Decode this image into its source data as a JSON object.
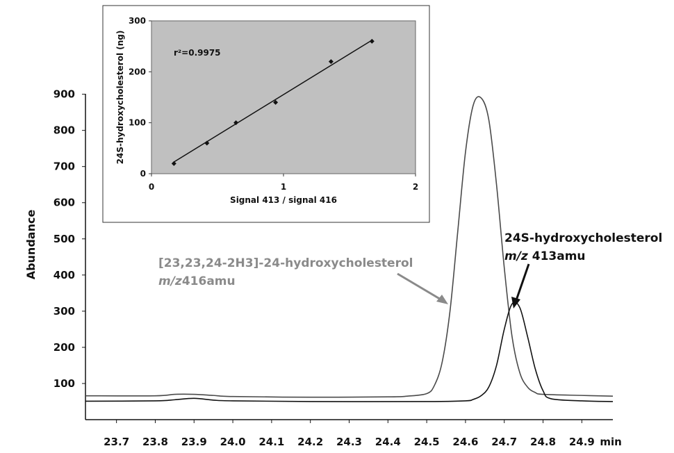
{
  "chart_data": [
    {
      "type": "line",
      "title": "",
      "xlabel": "",
      "ylabel": "Abundance",
      "x_unit": "min",
      "xlim": [
        23.62,
        24.98
      ],
      "ylim": [
        0,
        930
      ],
      "x_ticks": [
        "23.7",
        "23.8",
        "23.9",
        "24.0",
        "24.1",
        "24.2",
        "24.3",
        "24.4",
        "24.5",
        "24.6",
        "24.7",
        "24.8",
        "24.9"
      ],
      "y_ticks": [
        100,
        200,
        300,
        400,
        500,
        600,
        700,
        800,
        900
      ],
      "series": [
        {
          "name": "[23,23,24-2H3]-24-hydroxycholesterol m/z416amu",
          "color": "#4a4a4a",
          "x": [
            23.62,
            23.8,
            23.85,
            23.9,
            23.95,
            24.0,
            24.2,
            24.4,
            24.45,
            24.5,
            24.52,
            24.54,
            24.56,
            24.58,
            24.6,
            24.62,
            24.64,
            24.66,
            24.68,
            24.7,
            24.72,
            24.74,
            24.76,
            24.78,
            24.8,
            24.9,
            24.98
          ],
          "y": [
            66,
            66,
            70,
            70,
            67,
            64,
            62,
            63,
            65,
            72,
            95,
            160,
            300,
            520,
            740,
            870,
            890,
            830,
            650,
            420,
            230,
            130,
            90,
            75,
            70,
            67,
            65
          ]
        },
        {
          "name": "24S-hydroxycholesterol m/z 413amu",
          "color": "#111111",
          "x": [
            23.62,
            23.8,
            23.85,
            23.9,
            23.95,
            24.0,
            24.2,
            24.5,
            24.6,
            24.62,
            24.64,
            24.66,
            24.68,
            24.7,
            24.72,
            24.74,
            24.76,
            24.78,
            24.8,
            24.82,
            24.9,
            24.98
          ],
          "y": [
            51,
            52,
            55,
            59,
            54,
            52,
            50,
            50,
            52,
            56,
            66,
            90,
            150,
            250,
            320,
            310,
            230,
            140,
            80,
            58,
            52,
            50
          ]
        }
      ],
      "annotations": [
        {
          "text": "[23,23,24-2H3]-24-hydroxycholesterol",
          "line2_italic": "m/z",
          "line2_rest": "416amu"
        },
        {
          "text": "24S-hydroxycholesterol",
          "line2_italic": "m/z",
          "line2_rest": " 413amu"
        }
      ]
    },
    {
      "type": "scatter",
      "title": "",
      "xlabel": "Signal 413 / signal 416",
      "ylabel": "24S-hydroxycholesterol (ng)",
      "xlim": [
        0,
        2
      ],
      "ylim": [
        0,
        300
      ],
      "x_ticks": [
        0,
        1,
        2
      ],
      "y_ticks": [
        0,
        100,
        200,
        300
      ],
      "grid": false,
      "background": "#c0c0c0",
      "points": [
        {
          "x": 0.17,
          "y": 20
        },
        {
          "x": 0.42,
          "y": 60
        },
        {
          "x": 0.64,
          "y": 100
        },
        {
          "x": 0.94,
          "y": 140
        },
        {
          "x": 1.36,
          "y": 220
        },
        {
          "x": 1.67,
          "y": 260
        }
      ],
      "fit_line": {
        "x": [
          0.17,
          1.67
        ],
        "y": [
          23,
          262
        ]
      },
      "r2_label": "r²=0.9975"
    }
  ]
}
